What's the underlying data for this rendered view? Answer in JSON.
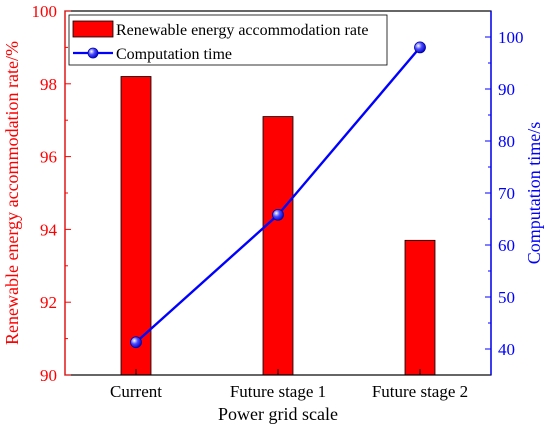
{
  "chart_data": {
    "type": "bar+line",
    "categories": [
      "Current",
      "Future stage 1",
      "Future stage 2"
    ],
    "xlabel": "Power grid scale",
    "left_axis": {
      "label": "Renewable energy accommodation rate/%",
      "ylim": [
        90,
        100
      ],
      "ticks": [
        90,
        92,
        94,
        96,
        98,
        100
      ],
      "color": "#ff0000"
    },
    "right_axis": {
      "label": "Computation time/s",
      "ylim": [
        35,
        105
      ],
      "ticks": [
        40,
        50,
        60,
        70,
        80,
        90,
        100
      ],
      "color": "#0000ff"
    },
    "series": [
      {
        "name": "Renewable energy accommodation rate",
        "type": "bar",
        "axis": "left",
        "values": [
          98.2,
          97.1,
          93.7
        ],
        "color": "#ff0000"
      },
      {
        "name": "Computation time",
        "type": "line",
        "axis": "right",
        "values": [
          41.3,
          65.8,
          98.0
        ],
        "color": "#0000ff"
      }
    ],
    "legend_position": "top-left",
    "grid": false
  }
}
